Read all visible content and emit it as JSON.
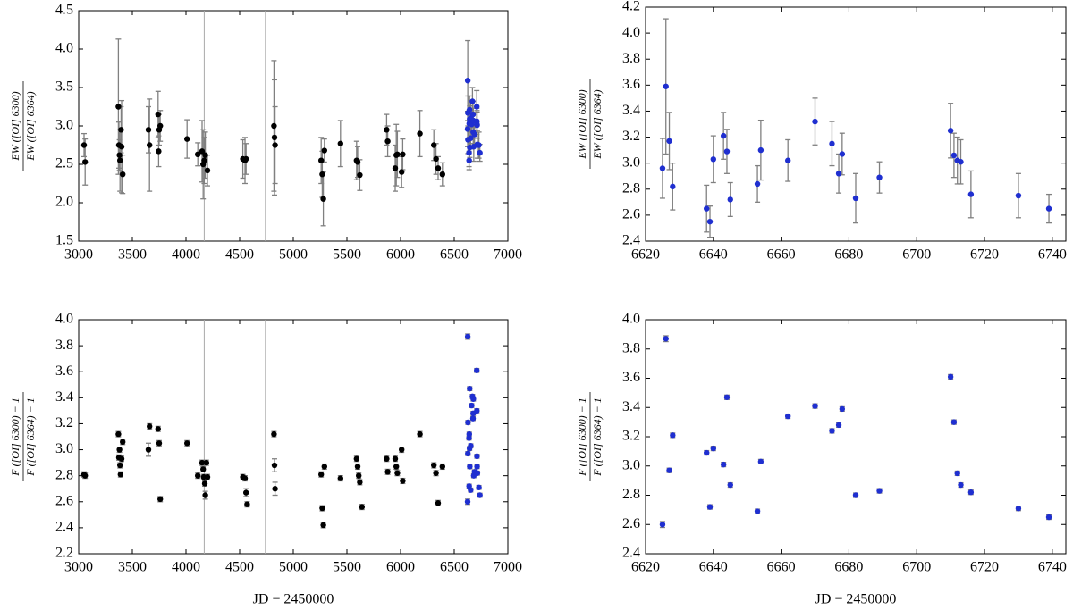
{
  "chart_data": [
    {
      "type": "scatter",
      "ylabel": {
        "numerator": "EW ([OI] 6300)",
        "denominator": "EW ([OI] 6364)"
      },
      "xlim": [
        3000,
        7000
      ],
      "xticks": [
        3000,
        3500,
        4000,
        4500,
        5000,
        5500,
        6000,
        6500,
        7000
      ],
      "ylim": [
        1.5,
        4.5
      ],
      "yticks": [
        1.5,
        {
          "value": 2,
          "label": "2.0"
        },
        2.5,
        {
          "value": 3,
          "label": "3.0"
        },
        3.5,
        {
          "value": 4,
          "label": "4.0"
        },
        4.5
      ],
      "vlines": [
        4170,
        4740
      ],
      "error_color": "#808080",
      "series": [
        {
          "color": "#000000",
          "x": [
            3050,
            3060,
            3370,
            3375,
            3380,
            3385,
            3395,
            3400,
            3410,
            3650,
            3660,
            3740,
            3750,
            3760,
            3745,
            4010,
            4110,
            4150,
            4160,
            4170,
            4180,
            4200,
            4530,
            4550,
            4560,
            4820,
            4825,
            4830,
            5260,
            5270,
            5280,
            5290,
            5440,
            5590,
            5600,
            5620,
            5870,
            5880,
            5950,
            5960,
            5970,
            6010,
            6020,
            6180,
            6310,
            6330,
            6350,
            6390
          ],
          "values": [
            2.75,
            2.53,
            3.25,
            2.75,
            2.62,
            2.55,
            2.95,
            2.73,
            2.37,
            2.95,
            2.75,
            3.15,
            2.95,
            3.0,
            2.67,
            2.83,
            2.63,
            2.67,
            2.5,
            2.55,
            2.62,
            2.42,
            2.57,
            2.55,
            2.57,
            3.0,
            2.85,
            2.75,
            2.55,
            2.37,
            2.05,
            2.68,
            2.77,
            2.55,
            2.53,
            2.36,
            2.95,
            2.8,
            2.45,
            2.62,
            2.63,
            2.4,
            2.63,
            2.9,
            2.75,
            2.57,
            2.45,
            2.37
          ],
          "errors": [
            0.15,
            0.3,
            0.88,
            0.3,
            0.2,
            0.4,
            0.3,
            0.6,
            0.25,
            0.3,
            0.6,
            0.3,
            0.2,
            0.2,
            0.2,
            0.25,
            0.15,
            0.4,
            0.45,
            0.3,
            0.3,
            0.2,
            0.25,
            0.3,
            0.2,
            0.85,
            0.75,
            0.5,
            0.3,
            0.3,
            0.35,
            0.15,
            0.3,
            0.25,
            0.2,
            0.2,
            0.2,
            0.2,
            0.3,
            0.4,
            0.3,
            0.2,
            0.2,
            0.3,
            0.2,
            0.2,
            0.15,
            0.15
          ]
        },
        {
          "color": "#1f2fd0",
          "x": [
            6625,
            6626,
            6627,
            6628,
            6638,
            6639,
            6640,
            6643,
            6644,
            6645,
            6653,
            6654,
            6662,
            6670,
            6675,
            6677,
            6678,
            6682,
            6689,
            6710,
            6711,
            6712,
            6713,
            6716,
            6730,
            6739
          ],
          "values": [
            2.96,
            3.59,
            3.17,
            2.82,
            2.65,
            2.55,
            3.03,
            3.21,
            3.09,
            2.72,
            2.84,
            3.1,
            3.02,
            3.32,
            3.15,
            2.92,
            3.07,
            2.73,
            2.89,
            3.25,
            3.06,
            3.02,
            3.01,
            2.76,
            2.75,
            2.65
          ],
          "errors": [
            0.23,
            0.52,
            0.22,
            0.18,
            0.18,
            0.12,
            0.18,
            0.18,
            0.17,
            0.13,
            0.14,
            0.23,
            0.16,
            0.18,
            0.17,
            0.15,
            0.16,
            0.19,
            0.12,
            0.21,
            0.17,
            0.18,
            0.17,
            0.18,
            0.17,
            0.11
          ]
        }
      ]
    },
    {
      "type": "scatter",
      "ylabel": {
        "numerator": "EW ([OI] 6300)",
        "denominator": "EW ([OI] 6364)"
      },
      "xlim": [
        6620,
        6744
      ],
      "xticks": [
        6620,
        6640,
        6660,
        6680,
        6700,
        6720,
        6740
      ],
      "ylim": [
        2.4,
        4.2
      ],
      "yticks": [
        2.4,
        2.6,
        2.8,
        {
          "value": 3,
          "label": "3.0"
        },
        3.2,
        3.4,
        3.6,
        3.8,
        {
          "value": 4,
          "label": "4.0"
        },
        4.2
      ],
      "error_color": "#808080",
      "series": [
        {
          "color": "#1f2fd0",
          "x": [
            6625,
            6626,
            6627,
            6628,
            6638,
            6639,
            6640,
            6643,
            6644,
            6645,
            6653,
            6654,
            6662,
            6670,
            6675,
            6677,
            6678,
            6682,
            6689,
            6710,
            6711,
            6712,
            6713,
            6716,
            6730,
            6739
          ],
          "values": [
            2.96,
            3.59,
            3.17,
            2.82,
            2.65,
            2.55,
            3.03,
            3.21,
            3.09,
            2.72,
            2.84,
            3.1,
            3.02,
            3.32,
            3.15,
            2.92,
            3.07,
            2.73,
            2.89,
            3.25,
            3.06,
            3.02,
            3.01,
            2.76,
            2.75,
            2.65
          ],
          "errors": [
            0.23,
            0.52,
            0.22,
            0.18,
            0.18,
            0.12,
            0.18,
            0.18,
            0.17,
            0.13,
            0.14,
            0.23,
            0.16,
            0.18,
            0.17,
            0.15,
            0.16,
            0.19,
            0.12,
            0.21,
            0.17,
            0.18,
            0.17,
            0.18,
            0.17,
            0.11
          ]
        }
      ]
    },
    {
      "type": "scatter",
      "ylabel": {
        "numerator": "F ([OI] 6300) − 1",
        "denominator": "F ([OI] 6364) − 1"
      },
      "xlabel": "JD − 2450000",
      "xlim": [
        3000,
        7000
      ],
      "xticks": [
        3000,
        3500,
        4000,
        4500,
        5000,
        5500,
        6000,
        6500,
        7000
      ],
      "ylim": [
        2.2,
        4.0
      ],
      "yticks": [
        2.2,
        2.4,
        2.6,
        2.8,
        {
          "value": 3,
          "label": "3.0"
        },
        3.2,
        3.4,
        3.6,
        3.8,
        {
          "value": 4,
          "label": "4.0"
        }
      ],
      "vlines": [
        4170,
        4740
      ],
      "error_color": "#808080",
      "series": [
        {
          "color": "#000000",
          "x": [
            3050,
            3060,
            3370,
            3375,
            3380,
            3385,
            3390,
            3400,
            3410,
            3650,
            3660,
            3740,
            3750,
            3760,
            4010,
            4110,
            4150,
            4160,
            4165,
            4180,
            4190,
            4200,
            4175,
            4530,
            4550,
            4560,
            4570,
            4820,
            4825,
            4830,
            5260,
            5270,
            5280,
            5290,
            5440,
            5590,
            5600,
            5610,
            5620,
            5640,
            5870,
            5880,
            5950,
            5960,
            5970,
            6010,
            6020,
            6180,
            6310,
            6330,
            6350,
            6390
          ],
          "values": [
            2.81,
            2.8,
            3.12,
            2.94,
            3.0,
            2.88,
            2.81,
            2.93,
            3.06,
            3.0,
            3.18,
            3.16,
            3.05,
            2.62,
            3.05,
            2.8,
            2.9,
            2.85,
            2.79,
            2.65,
            2.9,
            2.79,
            2.74,
            2.79,
            2.78,
            2.67,
            2.58,
            3.12,
            2.88,
            2.7,
            2.81,
            2.55,
            2.42,
            2.87,
            2.78,
            2.93,
            2.87,
            2.8,
            2.75,
            2.56,
            2.93,
            2.83,
            2.93,
            2.87,
            2.82,
            3.0,
            2.76,
            3.12,
            2.88,
            2.82,
            2.59,
            2.87
          ],
          "errors": [
            0.02,
            0.02,
            0.02,
            0.02,
            0.02,
            0.02,
            0.02,
            0.02,
            0.02,
            0.05,
            0.02,
            0.02,
            0.02,
            0.02,
            0.02,
            0.02,
            0.02,
            0.02,
            0.02,
            0.03,
            0.02,
            0.02,
            0.02,
            0.02,
            0.02,
            0.03,
            0.02,
            0.02,
            0.05,
            0.05,
            0.02,
            0.02,
            0.02,
            0.02,
            0.02,
            0.02,
            0.02,
            0.02,
            0.02,
            0.02,
            0.02,
            0.02,
            0.02,
            0.02,
            0.02,
            0.02,
            0.02,
            0.02,
            0.02,
            0.02,
            0.02,
            0.02
          ]
        },
        {
          "color": "#1f2fd0",
          "x": [
            6625,
            6626,
            6627,
            6628,
            6638,
            6639,
            6640,
            6643,
            6644,
            6645,
            6653,
            6654,
            6662,
            6670,
            6675,
            6677,
            6678,
            6682,
            6689,
            6710,
            6711,
            6712,
            6713,
            6716,
            6730,
            6739
          ],
          "values": [
            2.6,
            3.87,
            2.97,
            3.21,
            3.09,
            2.72,
            3.12,
            3.01,
            3.47,
            2.87,
            2.69,
            3.03,
            3.34,
            3.41,
            3.24,
            3.28,
            3.39,
            2.8,
            2.83,
            3.61,
            3.3,
            2.95,
            2.87,
            2.82,
            2.71,
            2.65
          ],
          "errors": [
            0.02,
            0.02,
            0.015,
            0.015,
            0.015,
            0.015,
            0.015,
            0.015,
            0.015,
            0.015,
            0.015,
            0.015,
            0.015,
            0.015,
            0.015,
            0.015,
            0.015,
            0.015,
            0.015,
            0.015,
            0.015,
            0.015,
            0.015,
            0.015,
            0.015,
            0.015
          ]
        }
      ]
    },
    {
      "type": "scatter",
      "ylabel": {
        "numerator": "F ([OI] 6300) − 1",
        "denominator": "F ([OI] 6364) − 1"
      },
      "xlabel": "JD − 2450000",
      "xlim": [
        6620,
        6744
      ],
      "xticks": [
        6620,
        6640,
        6660,
        6680,
        6700,
        6720,
        6740
      ],
      "ylim": [
        2.4,
        4.0
      ],
      "yticks": [
        2.4,
        2.6,
        2.8,
        {
          "value": 3,
          "label": "3.0"
        },
        3.2,
        3.4,
        3.6,
        3.8,
        {
          "value": 4,
          "label": "4.0"
        }
      ],
      "error_color": "#808080",
      "series": [
        {
          "color": "#1f2fd0",
          "x": [
            6625,
            6626,
            6627,
            6628,
            6638,
            6639,
            6640,
            6643,
            6644,
            6645,
            6653,
            6654,
            6662,
            6670,
            6675,
            6677,
            6678,
            6682,
            6689,
            6710,
            6711,
            6712,
            6713,
            6716,
            6730,
            6739
          ],
          "values": [
            2.6,
            3.87,
            2.97,
            3.21,
            3.09,
            2.72,
            3.12,
            3.01,
            3.47,
            2.87,
            2.69,
            3.03,
            3.34,
            3.41,
            3.24,
            3.28,
            3.39,
            2.8,
            2.83,
            3.61,
            3.3,
            2.95,
            2.87,
            2.82,
            2.71,
            2.65
          ],
          "errors": [
            0.02,
            0.02,
            0.015,
            0.015,
            0.015,
            0.015,
            0.015,
            0.015,
            0.015,
            0.015,
            0.015,
            0.015,
            0.015,
            0.015,
            0.015,
            0.015,
            0.015,
            0.015,
            0.015,
            0.015,
            0.015,
            0.015,
            0.015,
            0.015,
            0.015,
            0.015
          ]
        }
      ]
    }
  ]
}
